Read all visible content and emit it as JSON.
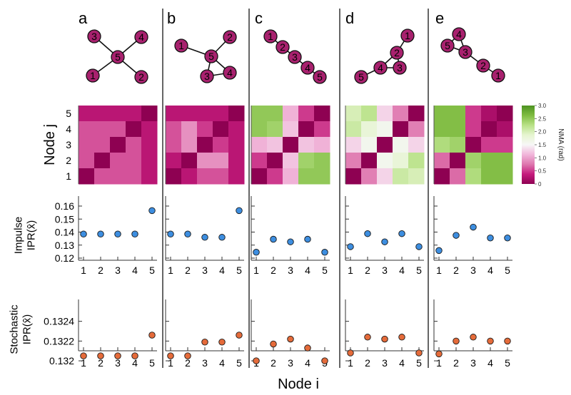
{
  "chart_data": {
    "type": "multi-panel",
    "panels": [
      "a",
      "b",
      "c",
      "d",
      "e"
    ],
    "networks": [
      {
        "panel": "a",
        "nodes": [
          "1",
          "2",
          "3",
          "4",
          "5"
        ],
        "edges": [
          [
            5,
            1
          ],
          [
            5,
            2
          ],
          [
            5,
            3
          ],
          [
            5,
            4
          ]
        ]
      },
      {
        "panel": "b",
        "nodes": [
          "1",
          "2",
          "3",
          "4",
          "5"
        ],
        "edges": [
          [
            1,
            5
          ],
          [
            2,
            5
          ],
          [
            3,
            5
          ],
          [
            4,
            5
          ],
          [
            3,
            4
          ]
        ]
      },
      {
        "panel": "c",
        "nodes": [
          "1",
          "2",
          "3",
          "4",
          "5"
        ],
        "edges": [
          [
            1,
            2
          ],
          [
            2,
            3
          ],
          [
            3,
            4
          ],
          [
            4,
            5
          ]
        ]
      },
      {
        "panel": "d",
        "nodes": [
          "1",
          "2",
          "3",
          "4",
          "5"
        ],
        "edges": [
          [
            1,
            2
          ],
          [
            2,
            3
          ],
          [
            2,
            4
          ],
          [
            3,
            4
          ],
          [
            4,
            5
          ]
        ]
      },
      {
        "panel": "e",
        "nodes": [
          "1",
          "2",
          "3",
          "4",
          "5"
        ],
        "edges": [
          [
            4,
            5
          ],
          [
            4,
            3
          ],
          [
            5,
            3
          ],
          [
            3,
            2
          ],
          [
            2,
            1
          ]
        ]
      }
    ],
    "heatmaps": {
      "type": "heatmap",
      "ylabel": "Node j",
      "row_ticks": [
        "5",
        "4",
        "3",
        "2",
        "1"
      ],
      "colorbar": {
        "label": "NMA (rad)",
        "min": 0,
        "max": 3.0,
        "ticks": [
          "3.0",
          "2.5",
          "2.0",
          "1.5",
          "1.0",
          "0.5",
          "0"
        ],
        "colors": [
          "#8e0152",
          "#c51b7d",
          "#de77ae",
          "#f1b6da",
          "#f7f7f7",
          "#e6f5d0",
          "#b8e186",
          "#7fbc41",
          "#4d9221"
        ]
      },
      "matrices": [
        [
          [
            0,
            0.6,
            0.6,
            0.6,
            0.3
          ],
          [
            0.6,
            0,
            0.6,
            0.6,
            0.3
          ],
          [
            0.6,
            0.6,
            0,
            0.6,
            0.3
          ],
          [
            0.6,
            0.6,
            0.6,
            0,
            0.3
          ],
          [
            0.3,
            0.3,
            0.3,
            0.3,
            0
          ]
        ],
        [
          [
            0,
            0.3,
            0.6,
            0.6,
            0.3
          ],
          [
            0.3,
            0,
            0.9,
            0.9,
            0.3
          ],
          [
            0.6,
            0.9,
            0,
            0.5,
            0.3
          ],
          [
            0.6,
            0.9,
            0.5,
            0,
            0.3
          ],
          [
            0.3,
            0.3,
            0.3,
            0.3,
            0
          ]
        ],
        [
          [
            0,
            0.5,
            1.1,
            2.5,
            2.5
          ],
          [
            0.5,
            0,
            1.2,
            2.4,
            2.5
          ],
          [
            1.1,
            1.2,
            0,
            1.2,
            1.1
          ],
          [
            2.5,
            2.4,
            1.2,
            0,
            0.5
          ],
          [
            2.5,
            2.5,
            1.1,
            0.5,
            0
          ]
        ],
        [
          [
            0,
            0.8,
            1.3,
            2.1,
            2.0
          ],
          [
            0.8,
            0,
            1.6,
            1.8,
            2.2
          ],
          [
            1.3,
            1.6,
            0,
            1.6,
            1.3
          ],
          [
            2.1,
            1.8,
            1.6,
            0,
            0.8
          ],
          [
            2.0,
            2.2,
            1.3,
            0.8,
            0
          ]
        ],
        [
          [
            0,
            0.7,
            2.3,
            2.6,
            2.6
          ],
          [
            0.7,
            0,
            2.4,
            2.6,
            2.6
          ],
          [
            2.3,
            2.4,
            0,
            0.5,
            0.5
          ],
          [
            2.6,
            2.6,
            0.5,
            0,
            0.2
          ],
          [
            2.6,
            2.6,
            0.5,
            0.2,
            0
          ]
        ]
      ]
    },
    "impulse": {
      "type": "scatter",
      "ylabel": "Impulse IPR(x̂)",
      "ylim": [
        0.12,
        0.16
      ],
      "y_ticks": [
        "0.12",
        "0.13",
        "0.14",
        "0.15",
        "0.16"
      ],
      "x": [
        "1",
        "2",
        "3",
        "4",
        "5"
      ],
      "color": "#3d8ee0",
      "series": [
        {
          "panel": "a",
          "values": [
            0.1385,
            0.1385,
            0.1385,
            0.1385,
            0.1565
          ]
        },
        {
          "panel": "b",
          "values": [
            0.1385,
            0.1385,
            0.136,
            0.136,
            0.1565
          ]
        },
        {
          "panel": "c",
          "values": [
            0.1245,
            0.1345,
            0.1325,
            0.1345,
            0.1245
          ]
        },
        {
          "panel": "d",
          "values": [
            0.1288,
            0.1388,
            0.1325,
            0.1388,
            0.1288
          ]
        },
        {
          "panel": "e",
          "values": [
            0.1258,
            0.1375,
            0.1438,
            0.1355,
            0.1355
          ]
        }
      ]
    },
    "stochastic": {
      "type": "scatter",
      "ylabel": "Stochastic IPR(x̂)",
      "ylim": [
        0.13195,
        0.13252
      ],
      "y_ticks": [
        "0.132",
        "0.1322",
        "0.1324"
      ],
      "x": [
        "1",
        "2",
        "3",
        "4",
        "5"
      ],
      "color": "#e56b3a",
      "series": [
        {
          "panel": "a",
          "values": [
            0.13205,
            0.13205,
            0.13205,
            0.13205,
            0.13226
          ]
        },
        {
          "panel": "b",
          "values": [
            0.13205,
            0.13205,
            0.13219,
            0.13219,
            0.13226
          ]
        },
        {
          "panel": "c",
          "values": [
            0.132,
            0.13217,
            0.13222,
            0.13213,
            0.132
          ]
        },
        {
          "panel": "d",
          "values": [
            0.13208,
            0.13224,
            0.13222,
            0.13224,
            0.13208
          ]
        },
        {
          "panel": "e",
          "values": [
            0.13207,
            0.1322,
            0.13224,
            0.1322,
            0.1322
          ]
        }
      ]
    },
    "xlabel": "Node i"
  }
}
